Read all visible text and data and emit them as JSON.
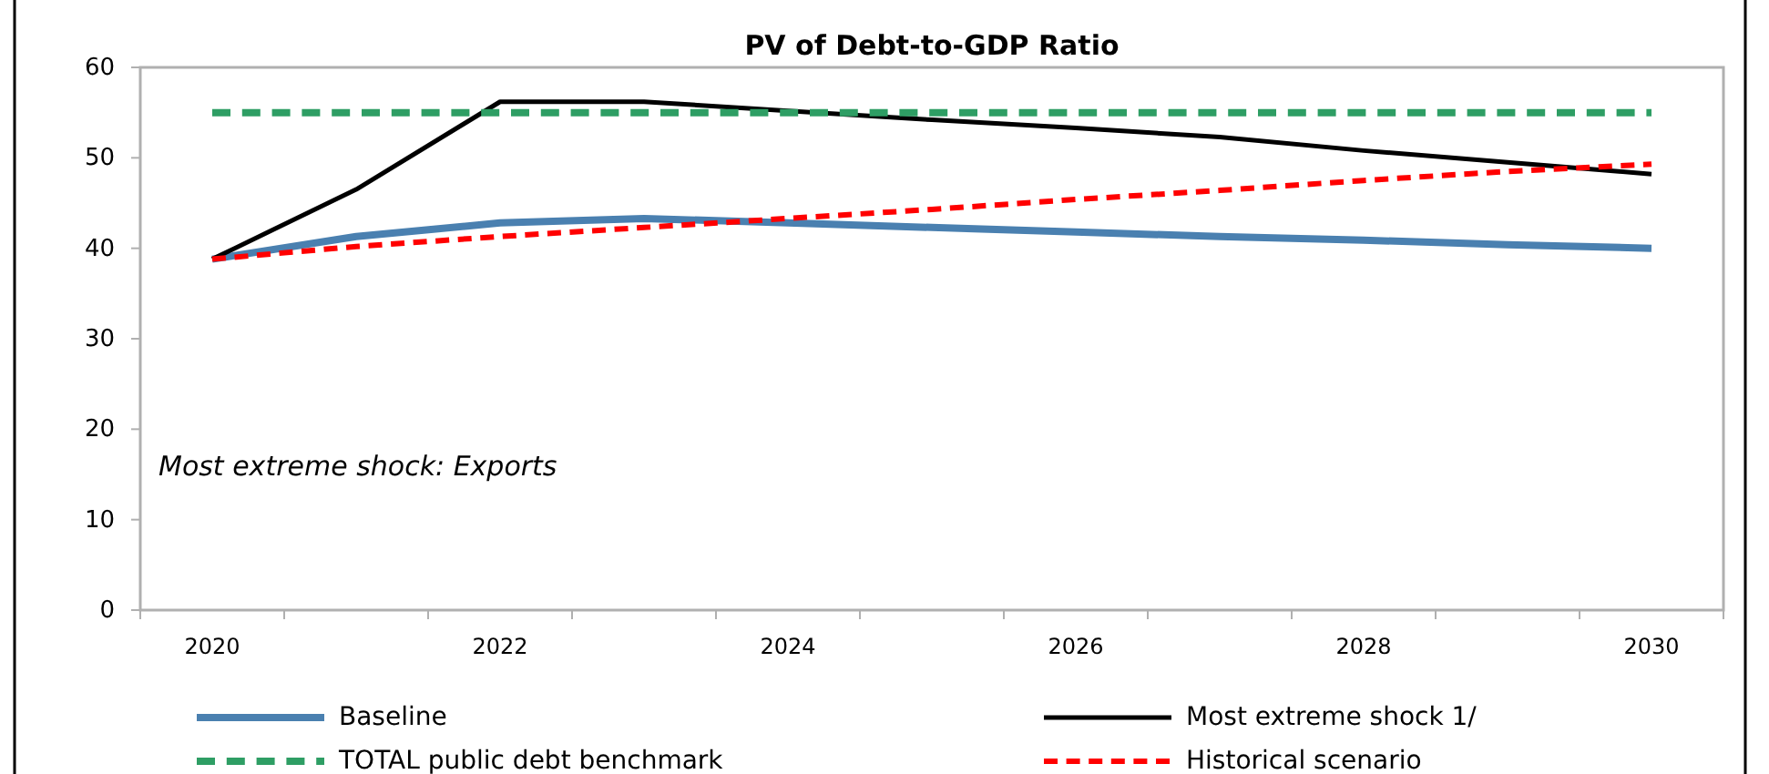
{
  "chart_data": {
    "type": "line",
    "title": "PV of Debt-to-GDP Ratio",
    "categories": [
      "2020",
      null,
      "2022",
      null,
      "2024",
      null,
      "2026",
      null,
      "2028",
      null,
      "2030"
    ],
    "ylim": [
      0,
      60
    ],
    "yticks": [
      0,
      10,
      20,
      30,
      40,
      50,
      60
    ],
    "grid": false,
    "legend": "bottom",
    "annotations": [
      "Most extreme shock: Exports"
    ],
    "series": [
      {
        "name": "Baseline",
        "color": "#4a80b0",
        "line_style": "solid",
        "values": [
          38.8,
          41.3,
          42.8,
          43.3,
          42.8,
          42.3,
          41.8,
          41.3,
          40.9,
          40.4,
          40.0
        ]
      },
      {
        "name": "Most extreme shock 1/",
        "color": "#000000",
        "line_style": "solid",
        "values": [
          38.8,
          46.5,
          56.2,
          56.2,
          55.2,
          54.2,
          53.3,
          52.3,
          50.8,
          49.5,
          48.2
        ]
      },
      {
        "name": "TOTAL public debt benchmark",
        "color": "#2e9e64",
        "line_style": "dashed",
        "values": [
          55,
          55,
          55,
          55,
          55,
          55,
          55,
          55,
          55,
          55,
          55
        ]
      },
      {
        "name": "Historical scenario",
        "color": "#ff0000",
        "line_style": "dashed",
        "values": [
          38.8,
          40.2,
          41.3,
          42.3,
          43.3,
          44.3,
          45.4,
          46.4,
          47.5,
          48.5,
          49.3
        ]
      }
    ]
  }
}
